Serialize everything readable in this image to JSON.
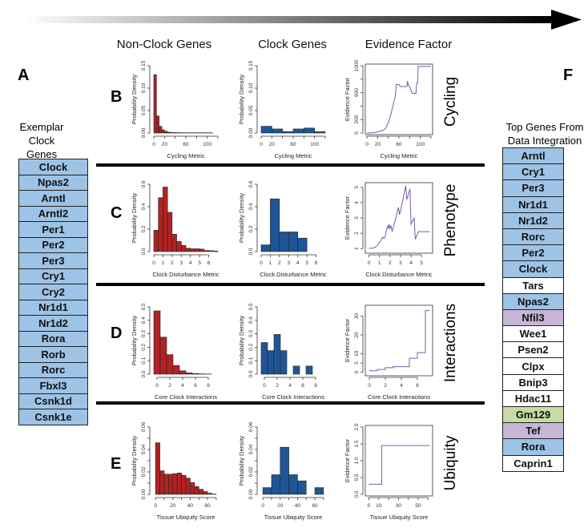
{
  "column_headers": [
    "Non-Clock Genes",
    "Clock Genes",
    "Evidence Factor"
  ],
  "panel_a": {
    "letter": "A",
    "title": "Exemplar Clock Genes",
    "genes": [
      "Clock",
      "Npas2",
      "Arntl",
      "Arntl2",
      "Per1",
      "Per2",
      "Per3",
      "Cry1",
      "Cry2",
      "Nr1d1",
      "Nr1d2",
      "Rora",
      "Rorb",
      "Rorc",
      "Fbxl3",
      "Csnk1d",
      "Csnk1e"
    ]
  },
  "panel_f": {
    "letter": "F",
    "title": "Top Genes From Data Integration",
    "genes": [
      {
        "name": "Arntl",
        "cat": "clock"
      },
      {
        "name": "Cry1",
        "cat": "clock"
      },
      {
        "name": "Per3",
        "cat": "clock"
      },
      {
        "name": "Nr1d1",
        "cat": "clock"
      },
      {
        "name": "Nr1d2",
        "cat": "clock"
      },
      {
        "name": "Rorc",
        "cat": "clock"
      },
      {
        "name": "Per2",
        "cat": "clock"
      },
      {
        "name": "Clock",
        "cat": "clock"
      },
      {
        "name": "Tars",
        "cat": "other"
      },
      {
        "name": "Npas2",
        "cat": "clock"
      },
      {
        "name": "Nfil3",
        "cat": "purple"
      },
      {
        "name": "Wee1",
        "cat": "other"
      },
      {
        "name": "Psen2",
        "cat": "other"
      },
      {
        "name": "Clpx",
        "cat": "other"
      },
      {
        "name": "Bnip3",
        "cat": "other"
      },
      {
        "name": "Hdac11",
        "cat": "other"
      },
      {
        "name": "Gm129",
        "cat": "green"
      },
      {
        "name": "Tef",
        "cat": "purple"
      },
      {
        "name": "Rora",
        "cat": "clock"
      },
      {
        "name": "Caprin1",
        "cat": "other"
      }
    ]
  },
  "colors": {
    "clock": "#9dc3e6",
    "purple": "#c8b6d6",
    "green": "#c8dba6",
    "other": "#ffffff",
    "nonclock_bar": "#b22222",
    "clock_bar": "#1f5596",
    "evidence_line": "#7a5ca8"
  },
  "rows": [
    {
      "letter": "B",
      "title": "Cycling"
    },
    {
      "letter": "C",
      "title": "Phenotype"
    },
    {
      "letter": "D",
      "title": "Interactions"
    },
    {
      "letter": "E",
      "title": "Ubiquity"
    }
  ],
  "chart_data": [
    {
      "type": "bar",
      "panel": "B",
      "column": "Non-Clock Genes",
      "xlabel": "Cycling Metric",
      "ylabel": "Probability Density",
      "xlim": [
        0,
        120
      ],
      "ylim": [
        0,
        0.15
      ],
      "xticks": [
        0,
        20,
        40,
        60,
        80,
        100,
        120
      ],
      "xticklabels": [
        "0",
        "20",
        "",
        "60",
        "",
        "100",
        ""
      ],
      "yticks": [
        0,
        0.05,
        0.1,
        0.15
      ],
      "yticklabels": [
        "0.00",
        "0.05",
        "0.10",
        "0.15"
      ],
      "bin_start": 0,
      "bin_width": 5,
      "values": [
        0.13,
        0.038,
        0.015,
        0.007,
        0.004,
        0.002,
        0.0012,
        0.001,
        0.0008,
        0.0007,
        0.0006,
        0.0005,
        0.0005,
        0.0005,
        0.0005,
        0.0005,
        0.0005,
        0.0005,
        0.0005,
        0.0005,
        0.0005,
        0.0005
      ]
    },
    {
      "type": "bar",
      "panel": "B",
      "column": "Clock Genes",
      "xlabel": "Cycling Metric",
      "ylabel": "Probability Density",
      "xlim": [
        0,
        120
      ],
      "ylim": [
        0,
        0.15
      ],
      "xticks": [
        0,
        20,
        40,
        60,
        80,
        100,
        120
      ],
      "xticklabels": [
        "0",
        "20",
        "",
        "60",
        "",
        "100",
        ""
      ],
      "yticks": [
        0,
        0.05,
        0.1,
        0.15
      ],
      "yticklabels": [
        "0.00",
        "0.05",
        "0.10",
        "0.15"
      ],
      "bin_start": 0,
      "bin_width": 20,
      "values": [
        0.015,
        0.009,
        0.003,
        0.009,
        0.011,
        0.003
      ]
    },
    {
      "type": "line",
      "panel": "B",
      "column": "Evidence Factor",
      "xlabel": "Cycling Metric",
      "ylabel": "Evidence Factor",
      "xlim": [
        0,
        120
      ],
      "ylim": [
        0,
        1000
      ],
      "xticks": [
        0,
        20,
        40,
        60,
        80,
        100,
        120
      ],
      "xticklabels": [
        "0",
        "20",
        "",
        "60",
        "",
        "100",
        ""
      ],
      "yticks": [
        0,
        200,
        400,
        600,
        800,
        1000
      ],
      "yticklabels": [
        "0",
        "200",
        "",
        "600",
        "",
        "1000"
      ],
      "x": [
        0,
        10,
        20,
        30,
        35,
        40,
        45,
        50,
        53,
        55,
        60,
        62,
        75,
        76,
        78,
        80,
        82,
        85,
        92,
        93,
        95,
        96,
        120
      ],
      "y": [
        0,
        5,
        15,
        40,
        70,
        150,
        280,
        450,
        540,
        720,
        720,
        690,
        690,
        770,
        700,
        690,
        650,
        590,
        590,
        740,
        740,
        990,
        990
      ]
    },
    {
      "type": "bar",
      "panel": "C",
      "column": "Non-Clock Genes",
      "xlabel": "Clock Disturbance Metric",
      "ylabel": "Probability Density",
      "xlim": [
        0,
        7
      ],
      "ylim": [
        0,
        0.6
      ],
      "xticks": [
        0,
        1,
        2,
        3,
        4,
        5,
        6
      ],
      "xticklabels": [
        "0",
        "1",
        "2",
        "3",
        "4",
        "5",
        "6"
      ],
      "yticks": [
        0,
        0.2,
        0.4,
        0.6
      ],
      "yticklabels": [
        "0.0",
        "0.2",
        "0.4",
        "0.6"
      ],
      "bin_start": 0,
      "bin_width": 0.5,
      "values": [
        0.19,
        0.48,
        0.575,
        0.35,
        0.155,
        0.09,
        0.055,
        0.03,
        0.025,
        0.025,
        0.022,
        0.01,
        0.008,
        0.005
      ]
    },
    {
      "type": "bar",
      "panel": "C",
      "column": "Clock Genes",
      "xlabel": "Clock Disturbance Metric",
      "ylabel": "Probability Density",
      "xlim": [
        0,
        7
      ],
      "ylim": [
        0,
        0.6
      ],
      "xticks": [
        0,
        1,
        2,
        3,
        4,
        5,
        6
      ],
      "xticklabels": [
        "0",
        "1",
        "2",
        "3",
        "4",
        "5",
        "6"
      ],
      "yticks": [
        0,
        0.2,
        0.4,
        0.6
      ],
      "yticklabels": [
        "0.0",
        "0.2",
        "0.4",
        "0.6"
      ],
      "bin_start": 0,
      "bin_width": 1,
      "values": [
        0.06,
        0.47,
        0.175,
        0.175,
        0.12
      ]
    },
    {
      "type": "line",
      "panel": "C",
      "column": "Evidence Factor",
      "xlabel": "Clock Disturbance Metric",
      "ylabel": "Evidence Factor",
      "xlim": [
        -0.2,
        5.9
      ],
      "ylim": [
        0.8,
        5.2
      ],
      "xticks": [
        0,
        1,
        2,
        3,
        4,
        5
      ],
      "xticklabels": [
        "0",
        "1",
        "2",
        "3",
        "4",
        "5"
      ],
      "yticks": [
        1,
        2,
        3,
        4,
        5
      ],
      "yticklabels": [
        "1",
        "2",
        "3",
        "4",
        "5"
      ],
      "x": [
        0,
        0.3,
        0.5,
        0.8,
        1.1,
        1.3,
        1.4,
        1.5,
        1.7,
        1.8,
        1.85,
        1.9,
        2.0,
        2.1,
        2.2,
        2.4,
        2.6,
        2.8,
        2.9,
        3.1,
        3.5,
        3.6,
        3.9,
        4.0,
        4.3,
        4.4,
        4.7,
        5.8
      ],
      "y": [
        1,
        1.02,
        1.05,
        1.2,
        1.5,
        1.75,
        1.65,
        1.7,
        2.3,
        2.5,
        2.3,
        2.6,
        2.3,
        2.5,
        2.1,
        2.6,
        3.1,
        3.7,
        3.2,
        3.8,
        5.1,
        4.2,
        4.9,
        2.6,
        3.0,
        1.6,
        2.1,
        2.1
      ]
    },
    {
      "type": "bar",
      "panel": "D",
      "column": "Non-Clock Genes",
      "xlabel": "Core Clock Interactions",
      "ylabel": "Probability Density",
      "xlim": [
        -0.5,
        9.5
      ],
      "ylim": [
        0,
        0.5
      ],
      "xticks": [
        0,
        2,
        4,
        6,
        8
      ],
      "xticklabels": [
        "0",
        "2",
        "4",
        "6",
        "8"
      ],
      "yticks": [
        0,
        0.1,
        0.2,
        0.3,
        0.4,
        0.5
      ],
      "yticklabels": [
        "0.0",
        "0.1",
        "0.2",
        "0.3",
        "0.4",
        "0.5"
      ],
      "bin_start": -0.5,
      "bin_width": 1,
      "values": [
        0.47,
        0.275,
        0.145,
        0.065,
        0.025,
        0.01,
        0.005,
        0.002,
        0.001
      ]
    },
    {
      "type": "bar",
      "panel": "D",
      "column": "Clock Genes",
      "xlabel": "Core Clock Interactions",
      "ylabel": "Probability Density",
      "xlim": [
        -0.5,
        9.5
      ],
      "ylim": [
        0,
        0.5
      ],
      "xticks": [
        0,
        2,
        4,
        6,
        8
      ],
      "xticklabels": [
        "0",
        "2",
        "4",
        "6",
        "8"
      ],
      "yticks": [
        0,
        0.1,
        0.2,
        0.3,
        0.4,
        0.5
      ],
      "yticklabels": [
        "0.0",
        "0.1",
        "0.2",
        "0.3",
        "0.4",
        "0.5"
      ],
      "bin_start": -0.5,
      "bin_width": 1,
      "values": [
        0.235,
        0.175,
        0.295,
        0.175,
        0,
        0.06,
        0,
        0.06
      ]
    },
    {
      "type": "line",
      "panel": "D",
      "column": "Evidence Factor",
      "xlabel": "Core Clock Interactions",
      "ylabel": "Evidence Factor",
      "xlim": [
        -0.3,
        7.7
      ],
      "ylim": [
        -1,
        35
      ],
      "xticks": [
        0,
        2,
        4,
        6
      ],
      "xticklabels": [
        "0",
        "2",
        "4",
        "6"
      ],
      "yticks": [
        0,
        5,
        10,
        20,
        30
      ],
      "yticklabels": [
        "0",
        "5",
        "10",
        "20",
        "30"
      ],
      "x": [
        0,
        1,
        1,
        2,
        2,
        3,
        3,
        5,
        5,
        6,
        6,
        7,
        7,
        7.5
      ],
      "y": [
        0.8,
        0.8,
        1.5,
        1.5,
        2.5,
        2.5,
        3,
        3,
        7.5,
        7.5,
        10.5,
        10.5,
        33,
        33
      ]
    },
    {
      "type": "bar",
      "panel": "E",
      "column": "Non-Clock Genes",
      "xlabel": "Tissue Ubiquity Score",
      "ylabel": "Probability Density",
      "xlim": [
        -2,
        72
      ],
      "ylim": [
        0,
        0.06
      ],
      "xticks": [
        0,
        10,
        20,
        30,
        40,
        50,
        60,
        70
      ],
      "xticklabels": [
        "0",
        "",
        "20",
        "",
        "40",
        "",
        "60",
        ""
      ],
      "yticks": [
        0,
        0.01,
        0.02,
        0.03,
        0.04,
        0.05,
        0.06
      ],
      "yticklabels": [
        "0.00",
        "",
        "0.02",
        "",
        "0.04",
        "",
        "0.06"
      ],
      "bin_start": 0,
      "bin_width": 5,
      "values": [
        0.046,
        0.021,
        0.018,
        0.018,
        0.0185,
        0.019,
        0.017,
        0.0145,
        0.0105,
        0.007,
        0.0045,
        0.0025,
        0.001,
        0.0003
      ]
    },
    {
      "type": "bar",
      "panel": "E",
      "column": "Clock Genes",
      "xlabel": "Tissue Ubiquity Score",
      "ylabel": "Probability Density",
      "xlim": [
        -2,
        72
      ],
      "ylim": [
        0,
        0.06
      ],
      "xticks": [
        0,
        10,
        20,
        30,
        40,
        50,
        60,
        70
      ],
      "xticklabels": [
        "0",
        "",
        "20",
        "",
        "40",
        "",
        "60",
        ""
      ],
      "yticks": [
        0,
        0.01,
        0.02,
        0.03,
        0.04,
        0.05,
        0.06
      ],
      "yticklabels": [
        "0.00",
        "",
        "0.02",
        "",
        "0.04",
        "",
        "0.06"
      ],
      "bin_start": 0,
      "bin_width": 10,
      "values": [
        0.006,
        0.0175,
        0.042,
        0.0175,
        0.012,
        0,
        0.006
      ]
    },
    {
      "type": "line",
      "panel": "E",
      "column": "Evidence Factor",
      "xlabel": "Tissue Ubiquity Score",
      "ylabel": "Evidence Factor",
      "xlim": [
        -2,
        63
      ],
      "ylim": [
        0,
        2
      ],
      "xticks": [
        0,
        10,
        20,
        30,
        40,
        50,
        60
      ],
      "xticklabels": [
        "0",
        "10",
        "",
        "30",
        "",
        "50",
        ""
      ],
      "yticks": [
        0,
        0.5,
        1,
        1.5,
        2
      ],
      "yticklabels": [
        "0.0",
        "0.5",
        "1.0",
        "1.5",
        "2.0"
      ],
      "x": [
        0,
        13,
        13,
        62
      ],
      "y": [
        0.3,
        0.3,
        1.45,
        1.45
      ]
    }
  ]
}
